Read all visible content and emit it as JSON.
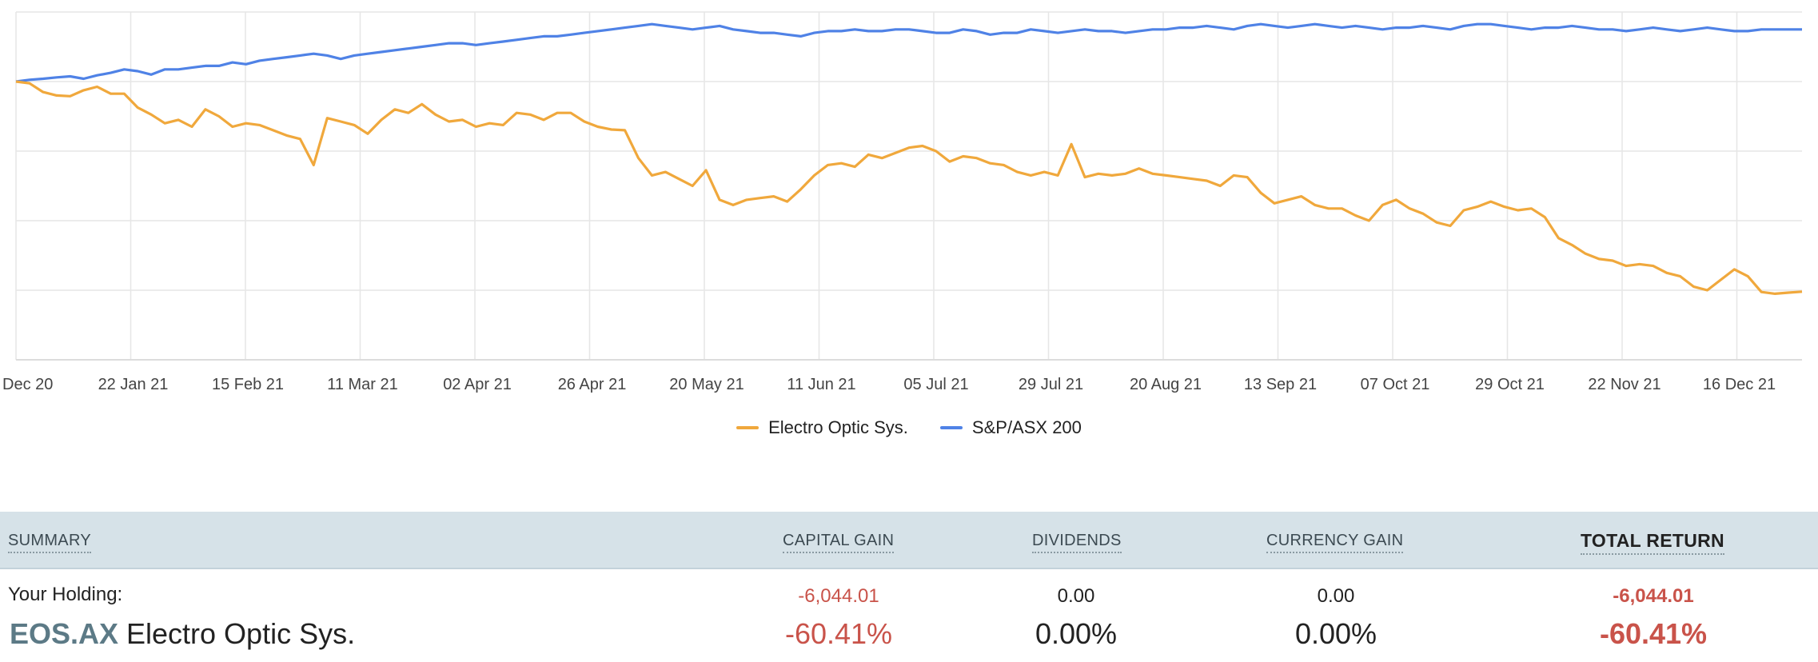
{
  "chart_data": {
    "type": "line",
    "x_ticks": [
      "Dec 20",
      "22 Jan 21",
      "15 Feb 21",
      "11 Mar 21",
      "02 Apr 21",
      "26 Apr 21",
      "20 May 21",
      "11 Jun 21",
      "05 Jul 21",
      "29 Jul 21",
      "20 Aug 21",
      "13 Sep 21",
      "07 Oct 21",
      "29 Oct 21",
      "22 Nov 21",
      "16 Dec 21"
    ],
    "ylim": [
      -80,
      20
    ],
    "grid": true,
    "legend_placement": "bottom-center",
    "series": [
      {
        "name": "Electro Optic Sys.",
        "color": "#f0a83c",
        "values": [
          0.0,
          -0.5,
          -3.0,
          -4.0,
          -4.2,
          -2.5,
          -1.5,
          -3.5,
          -3.5,
          -7.5,
          -9.5,
          -12.0,
          -11.0,
          -13.0,
          -8.0,
          -10.0,
          -13.0,
          -12.0,
          -12.5,
          -14.0,
          -15.5,
          -16.5,
          -24.0,
          -10.5,
          -11.5,
          -12.5,
          -15.0,
          -11.0,
          -8.0,
          -9.0,
          -6.5,
          -9.5,
          -11.5,
          -11.0,
          -13.0,
          -12.0,
          -12.5,
          -9.0,
          -9.5,
          -11.0,
          -9.0,
          -9.0,
          -11.5,
          -13.0,
          -13.8,
          -14.0,
          -22.0,
          -27.0,
          -26.0,
          -28.0,
          -30.0,
          -25.5,
          -34.0,
          -35.5,
          -34.0,
          -33.5,
          -33.0,
          -34.5,
          -31.0,
          -27.0,
          -24.0,
          -23.5,
          -24.5,
          -21.0,
          -22.0,
          -20.5,
          -19.0,
          -18.5,
          -20.0,
          -23.0,
          -21.5,
          -22.0,
          -23.5,
          -24.0,
          -26.0,
          -27.0,
          -26.0,
          -27.0,
          -18.0,
          -27.5,
          -26.5,
          -27.0,
          -26.5,
          -25.0,
          -26.5,
          -27.0,
          -27.5,
          -28.0,
          -28.5,
          -30.0,
          -27.0,
          -27.5,
          -32.0,
          -35.0,
          -34.0,
          -33.0,
          -35.5,
          -36.5,
          -36.5,
          -38.5,
          -40.0,
          -35.5,
          -34.0,
          -36.5,
          -38.0,
          -40.5,
          -41.5,
          -37.0,
          -36.0,
          -34.5,
          -36.0,
          -37.0,
          -36.5,
          -39.0,
          -45.0,
          -47.0,
          -49.5,
          -51.0,
          -51.5,
          -53.0,
          -52.5,
          -53.0,
          -55.0,
          -56.0,
          -59.0,
          -60.0,
          -57.0,
          -54.0,
          -56.0,
          -60.5,
          -61.0,
          -60.7,
          -60.41
        ]
      },
      {
        "name": "S&P/ASX 200",
        "color": "#4f82e6",
        "values": [
          0.0,
          0.5,
          0.8,
          1.2,
          1.5,
          0.8,
          1.8,
          2.5,
          3.5,
          3.0,
          2.0,
          3.5,
          3.5,
          4.0,
          4.5,
          4.5,
          5.5,
          5.0,
          6.0,
          6.5,
          7.0,
          7.5,
          8.0,
          7.5,
          6.5,
          7.5,
          8.0,
          8.5,
          9.0,
          9.5,
          10.0,
          10.5,
          11.0,
          11.0,
          10.5,
          11.0,
          11.5,
          12.0,
          12.5,
          13.0,
          13.0,
          13.5,
          14.0,
          14.5,
          15.0,
          15.5,
          16.0,
          16.5,
          16.0,
          15.5,
          15.0,
          15.5,
          16.0,
          15.0,
          14.5,
          14.0,
          14.0,
          13.5,
          13.0,
          14.0,
          14.5,
          14.5,
          15.0,
          14.5,
          14.5,
          15.0,
          15.0,
          14.5,
          14.0,
          14.0,
          15.0,
          14.5,
          13.5,
          14.0,
          14.0,
          15.0,
          14.5,
          14.0,
          14.5,
          15.0,
          14.5,
          14.5,
          14.0,
          14.5,
          15.0,
          15.0,
          15.5,
          15.5,
          16.0,
          15.5,
          15.0,
          16.0,
          16.5,
          16.0,
          15.5,
          16.0,
          16.5,
          16.0,
          15.5,
          16.0,
          15.5,
          15.0,
          15.5,
          15.5,
          16.0,
          15.5,
          15.0,
          16.0,
          16.5,
          16.5,
          16.0,
          15.5,
          15.0,
          15.5,
          15.5,
          16.0,
          15.5,
          15.0,
          15.0,
          14.5,
          15.0,
          15.5,
          15.0,
          14.5,
          15.0,
          15.5,
          15.0,
          14.5,
          14.5,
          15.0,
          15.0,
          15.0,
          15.0
        ]
      }
    ]
  },
  "legend": {
    "items": [
      {
        "label": "Electro Optic Sys.",
        "color": "#f0a83c"
      },
      {
        "label": "S&P/ASX 200",
        "color": "#4f82e6"
      }
    ]
  },
  "summary": {
    "headers": {
      "summary": "SUMMARY",
      "capital_gain": "CAPITAL GAIN",
      "dividends": "DIVIDENDS",
      "currency_gain": "CURRENCY GAIN",
      "total_return": "TOTAL RETURN"
    },
    "holding_label": "Your Holding:",
    "ticker": "EOS.AX",
    "company": "Electro Optic Sys.",
    "capital_gain_value": "-6,044.01",
    "capital_gain_pct": "-60.41%",
    "dividends_value": "0.00",
    "dividends_pct": "0.00%",
    "currency_gain_value": "0.00",
    "currency_gain_pct": "0.00%",
    "total_return_value": "-6,044.01",
    "total_return_pct": "-60.41%",
    "colors": {
      "negative": "#c9534a",
      "header_bg": "#d6e2e8"
    }
  }
}
